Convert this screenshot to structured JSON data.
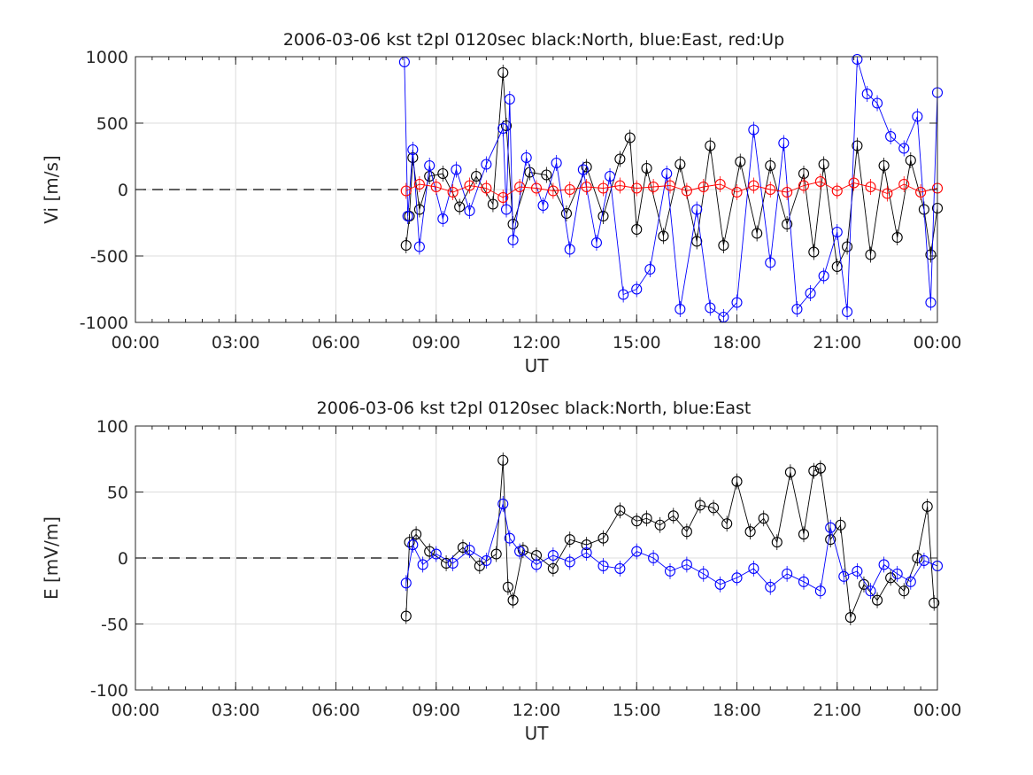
{
  "chart_data": [
    {
      "type": "scatter",
      "title": "2006-03-06 kst t2pl 0120sec black:North, blue:East, red:Up",
      "xlabel": "UT",
      "ylabel": "Vi [m/s]",
      "xlim": [
        0,
        24
      ],
      "ylim": [
        -1000,
        1000
      ],
      "xticks": [
        0,
        3,
        6,
        9,
        12,
        15,
        18,
        21,
        24
      ],
      "xtick_labels": [
        "00:00",
        "03:00",
        "06:00",
        "09:00",
        "12:00",
        "15:00",
        "18:00",
        "21:00",
        "00:00"
      ],
      "yticks": [
        1000,
        500,
        0,
        -500,
        -1000
      ],
      "ytick_labels": [
        "1000",
        "500",
        "0",
        "-500",
        "-1000"
      ],
      "grid": true,
      "reference_line": {
        "y": 0,
        "x_range": [
          0,
          8.0
        ],
        "style": "dashed"
      },
      "series": [
        {
          "name": "North",
          "color": "#000000",
          "x": [
            8.1,
            8.2,
            8.3,
            8.5,
            8.8,
            9.2,
            9.7,
            10.2,
            10.7,
            11.0,
            11.1,
            11.3,
            11.8,
            12.3,
            12.9,
            13.5,
            14.0,
            14.5,
            14.8,
            15.0,
            15.3,
            15.8,
            16.3,
            16.8,
            17.2,
            17.6,
            18.1,
            18.6,
            19.0,
            19.5,
            20.0,
            20.3,
            20.6,
            21.0,
            21.3,
            21.6,
            22.0,
            22.4,
            22.8,
            23.2,
            23.6,
            23.8,
            24.0
          ],
          "y": [
            -420,
            -200,
            240,
            -150,
            100,
            120,
            -130,
            100,
            -110,
            880,
            480,
            -260,
            130,
            110,
            -180,
            170,
            -200,
            230,
            390,
            -300,
            160,
            -350,
            190,
            -390,
            330,
            -420,
            210,
            -330,
            180,
            -260,
            120,
            -470,
            190,
            -580,
            -430,
            330,
            -490,
            180,
            -360,
            220,
            -150,
            -490,
            -140
          ]
        },
        {
          "name": "East",
          "color": "#0000ff",
          "x": [
            8.05,
            8.15,
            8.3,
            8.5,
            8.8,
            9.2,
            9.6,
            10.0,
            10.5,
            11.0,
            11.1,
            11.2,
            11.3,
            11.7,
            12.2,
            12.6,
            13.0,
            13.4,
            13.8,
            14.2,
            14.6,
            15.0,
            15.4,
            15.9,
            16.3,
            16.8,
            17.2,
            17.6,
            18.0,
            18.5,
            19.0,
            19.4,
            19.8,
            20.2,
            20.6,
            21.0,
            21.3,
            21.6,
            21.9,
            22.2,
            22.6,
            23.0,
            23.4,
            23.8,
            24.0
          ],
          "y": [
            960,
            -200,
            300,
            -430,
            180,
            -220,
            150,
            -160,
            190,
            460,
            -150,
            680,
            -380,
            240,
            -120,
            200,
            -450,
            150,
            -400,
            100,
            -790,
            -750,
            -600,
            120,
            -900,
            -150,
            -890,
            -960,
            -850,
            450,
            -550,
            350,
            -900,
            -780,
            -650,
            -320,
            -920,
            980,
            720,
            650,
            400,
            310,
            550,
            -850,
            730
          ]
        },
        {
          "name": "Up",
          "color": "#ff0000",
          "x": [
            8.1,
            8.5,
            9.0,
            9.5,
            10.0,
            10.5,
            11.0,
            11.5,
            12.0,
            12.5,
            13.0,
            13.5,
            14.0,
            14.5,
            15.0,
            15.5,
            16.0,
            16.5,
            17.0,
            17.5,
            18.0,
            18.5,
            19.0,
            19.5,
            20.0,
            20.5,
            21.0,
            21.5,
            22.0,
            22.5,
            23.0,
            23.5,
            24.0
          ],
          "y": [
            -10,
            40,
            20,
            -20,
            30,
            10,
            -60,
            20,
            10,
            -10,
            0,
            20,
            10,
            30,
            10,
            20,
            30,
            -10,
            20,
            40,
            -20,
            30,
            0,
            -20,
            30,
            60,
            -10,
            50,
            20,
            -30,
            40,
            -20,
            10
          ]
        }
      ]
    },
    {
      "type": "scatter",
      "title": "2006-03-06 kst t2pl 0120sec black:North, blue:East",
      "xlabel": "UT",
      "ylabel": "E [mV/m]",
      "xlim": [
        0,
        24
      ],
      "ylim": [
        -100,
        100
      ],
      "xticks": [
        0,
        3,
        6,
        9,
        12,
        15,
        18,
        21,
        24
      ],
      "xtick_labels": [
        "00:00",
        "03:00",
        "06:00",
        "09:00",
        "12:00",
        "15:00",
        "18:00",
        "21:00",
        "00:00"
      ],
      "yticks": [
        100,
        50,
        0,
        -50,
        -100
      ],
      "ytick_labels": [
        "100",
        "50",
        "0",
        "-50",
        "-100"
      ],
      "grid": true,
      "reference_line": {
        "y": 0,
        "x_range": [
          0,
          8.0
        ],
        "style": "dashed"
      },
      "series": [
        {
          "name": "North",
          "color": "#000000",
          "x": [
            8.1,
            8.2,
            8.4,
            8.8,
            9.3,
            9.8,
            10.3,
            10.8,
            11.0,
            11.15,
            11.3,
            11.6,
            12.0,
            12.5,
            13.0,
            13.5,
            14.0,
            14.5,
            15.0,
            15.3,
            15.7,
            16.1,
            16.5,
            16.9,
            17.3,
            17.7,
            18.0,
            18.4,
            18.8,
            19.2,
            19.6,
            20.0,
            20.3,
            20.5,
            20.8,
            21.1,
            21.4,
            21.8,
            22.2,
            22.6,
            23.0,
            23.4,
            23.7,
            23.9
          ],
          "y": [
            -44,
            12,
            18,
            5,
            -4,
            8,
            -6,
            3,
            74,
            -22,
            -32,
            6,
            2,
            -8,
            14,
            10,
            15,
            36,
            28,
            30,
            25,
            32,
            20,
            40,
            38,
            26,
            58,
            20,
            30,
            12,
            65,
            18,
            66,
            68,
            14,
            25,
            -45,
            -20,
            -32,
            -15,
            -25,
            0,
            39,
            -34
          ]
        },
        {
          "name": "East",
          "color": "#0000ff",
          "x": [
            8.1,
            8.3,
            8.6,
            9.0,
            9.5,
            10.0,
            10.5,
            11.0,
            11.2,
            11.5,
            12.0,
            12.5,
            13.0,
            13.5,
            14.0,
            14.5,
            15.0,
            15.5,
            16.0,
            16.5,
            17.0,
            17.5,
            18.0,
            18.5,
            19.0,
            19.5,
            20.0,
            20.5,
            20.8,
            21.2,
            21.6,
            22.0,
            22.4,
            22.8,
            23.2,
            23.6,
            24.0
          ],
          "y": [
            -19,
            10,
            -5,
            3,
            -4,
            6,
            -2,
            41,
            15,
            5,
            -5,
            2,
            -3,
            4,
            -6,
            -8,
            5,
            0,
            -10,
            -5,
            -12,
            -20,
            -15,
            -8,
            -22,
            -12,
            -18,
            -25,
            23,
            -14,
            -10,
            -25,
            -5,
            -12,
            -18,
            -2,
            -6
          ]
        }
      ]
    }
  ]
}
